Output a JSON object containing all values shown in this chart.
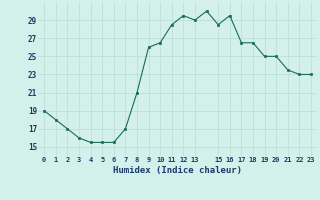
{
  "x": [
    0,
    1,
    2,
    3,
    4,
    5,
    6,
    7,
    8,
    9,
    10,
    11,
    12,
    13,
    14,
    15,
    16,
    17,
    18,
    19,
    20,
    21,
    22,
    23
  ],
  "y": [
    19,
    18,
    17,
    16,
    15.5,
    15.5,
    15.5,
    17,
    21,
    26,
    26.5,
    28.5,
    29.5,
    29,
    30,
    28.5,
    29.5,
    26.5,
    26.5,
    25,
    25,
    23.5,
    23,
    23
  ],
  "line_color": "#1a6b5a",
  "marker_color": "#1a6b5a",
  "bg_color": "#d4f0eb",
  "grid_color": "#b8ddd8",
  "xlabel": "Humidex (Indice chaleur)",
  "xlabel_color": "#1a3a6a",
  "tick_color": "#1a3a6a",
  "xlim": [
    -0.5,
    23.5
  ],
  "ylim": [
    14,
    31
  ],
  "yticks": [
    15,
    17,
    19,
    21,
    23,
    25,
    27,
    29
  ],
  "xticks": [
    0,
    1,
    2,
    3,
    4,
    5,
    6,
    7,
    8,
    9,
    10,
    11,
    12,
    13,
    15,
    16,
    17,
    18,
    19,
    20,
    21,
    22,
    23
  ],
  "xtick_labels": [
    "0",
    "1",
    "2",
    "3",
    "4",
    "5",
    "6",
    "7",
    "8",
    "9",
    "10",
    "11",
    "12",
    "13",
    "15",
    "16",
    "17",
    "18",
    "19",
    "20",
    "21",
    "22",
    "23"
  ]
}
